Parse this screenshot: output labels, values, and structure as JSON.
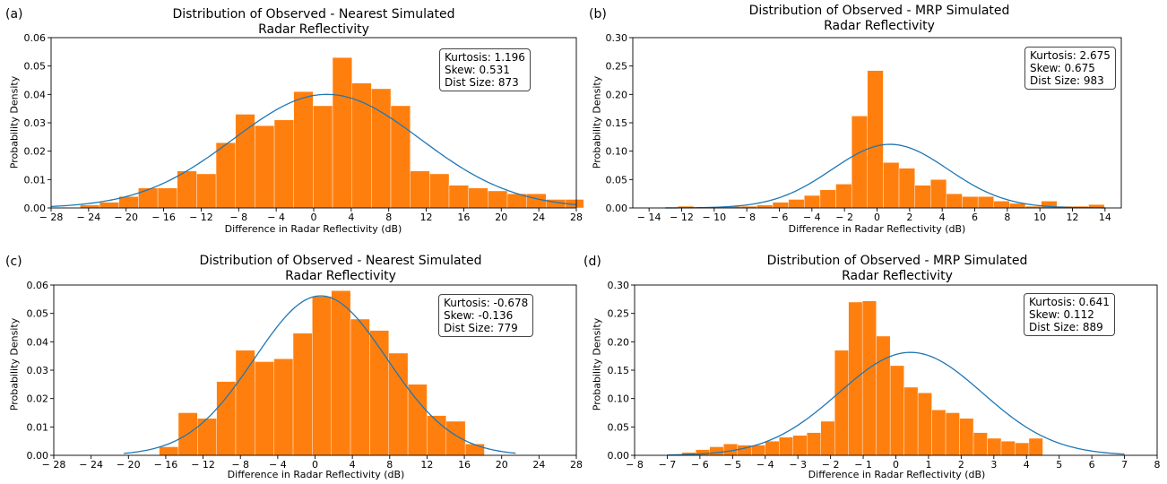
{
  "panels": [
    {
      "label": "(a)",
      "title_line1": "Distribution of Observed - Nearest Simulated",
      "title_line2": "Radar Reflectivity",
      "ylabel": "Probability Density",
      "xlabel": "Difference in Radar Reflectivity (dB)",
      "stats": [
        "Kurtosis: 1.196",
        "Skew: 0.531",
        "Dist Size: 873"
      ]
    },
    {
      "label": "(b)",
      "title_line1": "Distribution of Observed - MRP Simulated",
      "title_line2": "Radar Reflectivity",
      "ylabel": "Probability Density",
      "xlabel": "Difference in Radar Reflectivity (dB)",
      "stats": [
        "Kurtosis: 2.675",
        "Skew: 0.675",
        "Dist Size: 983"
      ]
    },
    {
      "label": "(c)",
      "title_line1": "Distribution of Observed - Nearest Simulated",
      "title_line2": "Radar Reflectivity",
      "ylabel": "Probability Density",
      "xlabel": "Difference in Radar Reflectivity (dB)",
      "stats": [
        "Kurtosis: -0.678",
        "Skew: -0.136",
        "Dist Size: 779"
      ]
    },
    {
      "label": "(d)",
      "title_line1": "Distribution of Observed - MRP Simulated",
      "title_line2": "Radar Reflectivity",
      "ylabel": "Probability Density",
      "xlabel": "Difference in Radar Reflectivity (dB)",
      "stats": [
        "Kurtosis: 0.641",
        "Skew: 0.112",
        "Dist Size: 889"
      ]
    }
  ],
  "colors": {
    "bar": "#ff7f0e",
    "curve": "#1f77b4"
  },
  "chart_data": [
    {
      "type": "bar",
      "xlim": [
        -28,
        28
      ],
      "ylim": [
        0,
        0.06
      ],
      "xticks": [
        -28,
        -24,
        -20,
        -16,
        -12,
        -8,
        -4,
        0,
        4,
        8,
        12,
        16,
        20,
        24,
        28
      ],
      "xtick_labels": [
        "− 28",
        "− 24",
        "− 20",
        "− 16",
        "− 12",
        "− 8",
        "− 4",
        "0",
        "4",
        "8",
        "12",
        "16",
        "20",
        "24",
        "28"
      ],
      "yticks": [
        0,
        0.01,
        0.02,
        0.03,
        0.04,
        0.05,
        0.06
      ],
      "ytick_labels": [
        "0.00",
        "0.01",
        "0.02",
        "0.03",
        "0.04",
        "0.05",
        "0.06"
      ],
      "bins": {
        "start": -24.9,
        "width": 2.07
      },
      "values": [
        0.001,
        0.002,
        0.004,
        0.007,
        0.007,
        0.013,
        0.012,
        0.023,
        0.033,
        0.029,
        0.031,
        0.041,
        0.036,
        0.053,
        0.044,
        0.042,
        0.036,
        0.013,
        0.012,
        0.008,
        0.007,
        0.006,
        0.005,
        0.005,
        0.003,
        0.003
      ],
      "fit": {
        "mean": 1.4,
        "sd": 9.97,
        "xrange": [
          -28,
          28
        ]
      }
    },
    {
      "type": "bar",
      "xlim": [
        -15,
        15
      ],
      "ylim": [
        0,
        0.3
      ],
      "xticks": [
        -14,
        -12,
        -10,
        -8,
        -6,
        -4,
        -2,
        0,
        2,
        4,
        6,
        8,
        10,
        12,
        14
      ],
      "xtick_labels": [
        "− 14",
        "− 12",
        "− 10",
        "− 8",
        "− 6",
        "− 4",
        "− 2",
        "0",
        "2",
        "4",
        "6",
        "8",
        "10",
        "12",
        "14"
      ],
      "yticks": [
        0,
        0.05,
        0.1,
        0.15,
        0.2,
        0.25,
        0.3
      ],
      "ytick_labels": [
        "0.00",
        "0.05",
        "0.10",
        "0.15",
        "0.20",
        "0.25",
        "0.30"
      ],
      "bins": {
        "start": -13.2,
        "width": 0.97
      },
      "values": [
        0.0,
        0.003,
        0.0,
        0.0,
        0.003,
        0.003,
        0.005,
        0.01,
        0.015,
        0.022,
        0.032,
        0.042,
        0.162,
        0.242,
        0.08,
        0.07,
        0.04,
        0.05,
        0.025,
        0.02,
        0.02,
        0.012,
        0.008,
        0.003,
        0.012,
        0.003,
        0.003,
        0.006
      ],
      "fit": {
        "mean": 0.8,
        "sd": 3.56,
        "xrange": [
          -13,
          14
        ]
      }
    },
    {
      "type": "bar",
      "xlim": [
        -28,
        28
      ],
      "ylim": [
        0,
        0.06
      ],
      "xticks": [
        -28,
        -24,
        -20,
        -16,
        -12,
        -8,
        -4,
        0,
        4,
        8,
        12,
        16,
        20,
        24,
        28
      ],
      "xtick_labels": [
        "− 28",
        "− 24",
        "− 20",
        "− 16",
        "− 12",
        "− 8",
        "− 4",
        "0",
        "4",
        "8",
        "12",
        "16",
        "20",
        "24",
        "28"
      ],
      "yticks": [
        0,
        0.01,
        0.02,
        0.03,
        0.04,
        0.05,
        0.06
      ],
      "ytick_labels": [
        "0.00",
        "0.01",
        "0.02",
        "0.03",
        "0.04",
        "0.05",
        "0.06"
      ],
      "bins": {
        "start": -16.7,
        "width": 2.05
      },
      "values": [
        0.003,
        0.015,
        0.013,
        0.026,
        0.037,
        0.033,
        0.034,
        0.043,
        0.056,
        0.058,
        0.048,
        0.044,
        0.036,
        0.025,
        0.014,
        0.012,
        0.004
      ],
      "fit": {
        "mean": 0.6,
        "sd": 7.1,
        "xrange": [
          -20.5,
          21.5
        ]
      }
    },
    {
      "type": "bar",
      "xlim": [
        -8,
        8
      ],
      "ylim": [
        0,
        0.3
      ],
      "xticks": [
        -8,
        -7,
        -6,
        -5,
        -4,
        -3,
        -2,
        -1,
        0,
        1,
        2,
        3,
        4,
        5,
        6,
        7,
        8
      ],
      "xtick_labels": [
        "− 8",
        "− 7",
        "− 6",
        "− 5",
        "− 4",
        "− 3",
        "− 2",
        "− 1",
        "0",
        "1",
        "2",
        "3",
        "4",
        "5",
        "6",
        "7",
        "8"
      ],
      "yticks": [
        0,
        0.05,
        0.1,
        0.15,
        0.2,
        0.25,
        0.3
      ],
      "ytick_labels": [
        "0.00",
        "0.05",
        "0.10",
        "0.15",
        "0.20",
        "0.25",
        "0.30"
      ],
      "bins": {
        "start": -6.55,
        "width": 0.425
      },
      "values": [
        0.005,
        0.01,
        0.015,
        0.02,
        0.018,
        0.018,
        0.025,
        0.032,
        0.035,
        0.04,
        0.06,
        0.185,
        0.27,
        0.272,
        0.21,
        0.158,
        0.12,
        0.11,
        0.08,
        0.075,
        0.065,
        0.04,
        0.03,
        0.025,
        0.022,
        0.03
      ],
      "fit": {
        "mean": 0.45,
        "sd": 2.2,
        "xrange": [
          -7,
          7
        ]
      }
    }
  ]
}
